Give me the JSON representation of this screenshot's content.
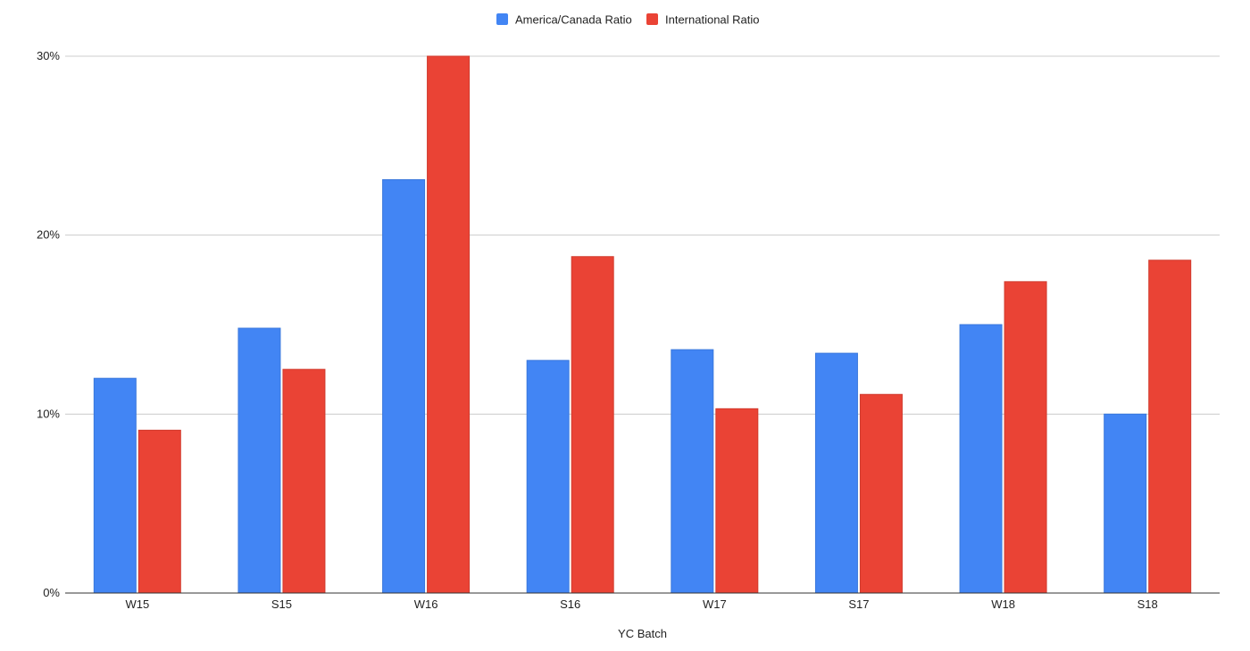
{
  "chart_data": {
    "type": "bar",
    "title": "",
    "xlabel": "YC Batch",
    "ylabel": "",
    "categories": [
      "W15",
      "S15",
      "W16",
      "S16",
      "W17",
      "S17",
      "W18",
      "S18"
    ],
    "series": [
      {
        "name": "America/Canada Ratio",
        "color": "#4285f4",
        "values": [
          0.12,
          0.148,
          0.231,
          0.13,
          0.136,
          0.134,
          0.15,
          0.1
        ]
      },
      {
        "name": "International Ratio",
        "color": "#ea4335",
        "values": [
          0.091,
          0.125,
          0.3,
          0.188,
          0.103,
          0.111,
          0.174,
          0.186
        ]
      }
    ],
    "ylim": [
      0,
      0.3
    ],
    "yticks": [
      0,
      0.1,
      0.2,
      0.3
    ],
    "ytick_labels": [
      "0%",
      "10%",
      "20%",
      "30%"
    ],
    "grid": true,
    "legend": "top-center"
  }
}
